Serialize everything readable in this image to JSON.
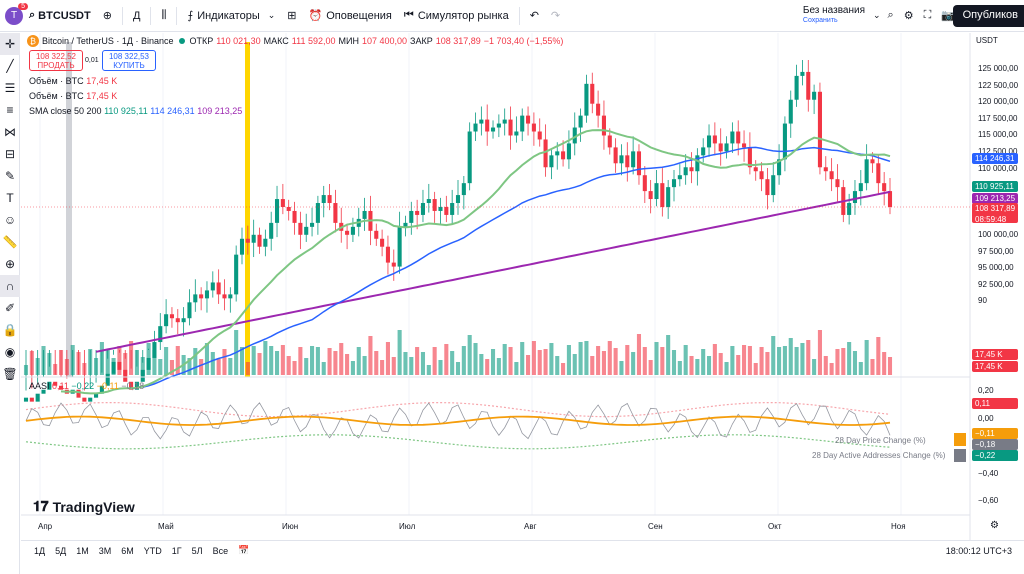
{
  "header": {
    "avatar_letter": "T",
    "avatar_badge": "5",
    "symbol": "BTCUSDT",
    "interval": "Д",
    "indicators_label": "Индикаторы",
    "alerts_label": "Оповещения",
    "replay_label": "Симулятор рынка",
    "layout_name": "Без названия",
    "layout_status": "Сохранить",
    "publish_label": "Опубликов"
  },
  "legend": {
    "title": "Bitcoin / TetherUS · 1Д · Binance",
    "open_label": "ОТКР",
    "open_value": "110 021,30",
    "high_label": "МАКС",
    "high_value": "111 592,00",
    "low_label": "МИН",
    "low_value": "107 400,00",
    "close_label": "ЗАКР",
    "close_value": "108 317,89",
    "change": "−1 703,40 (−1,55%)"
  },
  "trade": {
    "sell_price": "108 322,52",
    "sell_label": "ПРОДАТЬ",
    "spread": "0,01",
    "buy_price": "108 322,53",
    "buy_label": "КУПИТЬ"
  },
  "indicators": [
    {
      "name": "Объём · BTC",
      "value": "17,45 K"
    },
    {
      "name": "Объём · BTC",
      "value": "17,45 K"
    }
  ],
  "sma": {
    "name": "SMA close 50 200",
    "v1": "110 925,11",
    "v2": "114 246,31",
    "v3": "109 213,25"
  },
  "aasi": {
    "name": "AASI",
    "v1": "0,11",
    "v2": "−0,22",
    "v3": "−0,11",
    "v4": "−0,18",
    "ann1": "28 Day Price Change (%)",
    "ann2": "28 Day Active Addresses Change (%)"
  },
  "price_axis": {
    "currency": "USDT",
    "labels": [
      "125 000,00",
      "122 500,00",
      "120 000,00",
      "117 500,00",
      "115 000,00",
      "112 500,00",
      "110 000,00",
      "107 500,00",
      "105 000,00",
      "102 500,00",
      "100 000,00",
      "97 500,00",
      "95 000,00",
      "92 500,00",
      "90"
    ],
    "tags": {
      "sma200": "114 246,31",
      "sma50": "110 925,11",
      "sma_purple": "109 213,25",
      "close": "108 317,89",
      "countdown": "08:59:48",
      "vol1": "17,45 K",
      "vol2": "17,45 K"
    },
    "colors": {
      "green": "#089981",
      "red": "#f23645",
      "blue": "#2962ff",
      "purple": "#9c27b0",
      "sma_green": "#7ec683"
    }
  },
  "aasi_axis": {
    "labels": [
      "0,20",
      "0,00",
      "−0,20",
      "−0,40",
      "−0,60"
    ],
    "tags": {
      "upper": "0,11",
      "orange": "−0,11",
      "grey": "−0,18",
      "green": "−0,22"
    }
  },
  "time_axis": [
    "Апр",
    "Май",
    "Июн",
    "Июл",
    "Авг",
    "Сен",
    "Окт",
    "Ноя"
  ],
  "bottom": {
    "ranges": [
      "1Д",
      "5Д",
      "1М",
      "3М",
      "6М",
      "YTD",
      "1Г",
      "5Л",
      "Все"
    ],
    "clock": "18:00:12 UTC+3"
  },
  "brand": "TradingView",
  "chart_data": {
    "type": "candlestick",
    "title": "Bitcoin / TetherUS · 1Д · Binance",
    "y_range": [
      90000,
      126500
    ],
    "x_range_months": [
      "Апр",
      "Май",
      "Июн",
      "Июл",
      "Авг",
      "Сен",
      "Окт",
      "Ноя"
    ],
    "candles_approx_close": [
      84000,
      83500,
      84500,
      85000,
      86000,
      85500,
      85000,
      84500,
      85000,
      84000,
      83500,
      84000,
      84500,
      85500,
      87000,
      88500,
      87500,
      86000,
      85000,
      86000,
      87500,
      89000,
      91000,
      93000,
      94500,
      94000,
      93500,
      94000,
      96000,
      97000,
      96500,
      97500,
      98500,
      97000,
      96500,
      97000,
      102000,
      104000,
      103500,
      104500,
      103000,
      104000,
      106000,
      109000,
      108000,
      107500,
      106000,
      104500,
      105500,
      106000,
      108500,
      109500,
      108500,
      106000,
      105000,
      104500,
      105500,
      106500,
      107500,
      105000,
      104000,
      103000,
      101000,
      100500,
      105500,
      106000,
      107500,
      107000,
      108500,
      109000,
      107500,
      108000,
      107000,
      108500,
      109500,
      111000,
      117500,
      118500,
      119000,
      117500,
      118000,
      118500,
      119000,
      117000,
      117500,
      119500,
      118500,
      117500,
      116500,
      113000,
      114500,
      115000,
      114000,
      116000,
      118000,
      119500,
      123500,
      121000,
      119500,
      117000,
      115500,
      113500,
      114500,
      113000,
      115000,
      112000,
      110000,
      109000,
      111000,
      108000,
      110500,
      111500,
      112000,
      113000,
      112500,
      114500,
      115500,
      117000,
      116000,
      115000,
      116000,
      117500,
      116000,
      115500,
      113000,
      112500,
      111500,
      109500,
      112000,
      114000,
      118500,
      121500,
      124500,
      125000,
      121500,
      122500,
      113000,
      112500,
      111500,
      110500,
      107000,
      108500,
      110000,
      111000,
      114000,
      113500,
      111000,
      110000,
      108000
    ],
    "sma_series": [
      {
        "color": "#7ec683"
      },
      {
        "color": "#2962ff"
      },
      {
        "color": "#9c27b0"
      }
    ],
    "volume_tag": "17,45 K"
  }
}
